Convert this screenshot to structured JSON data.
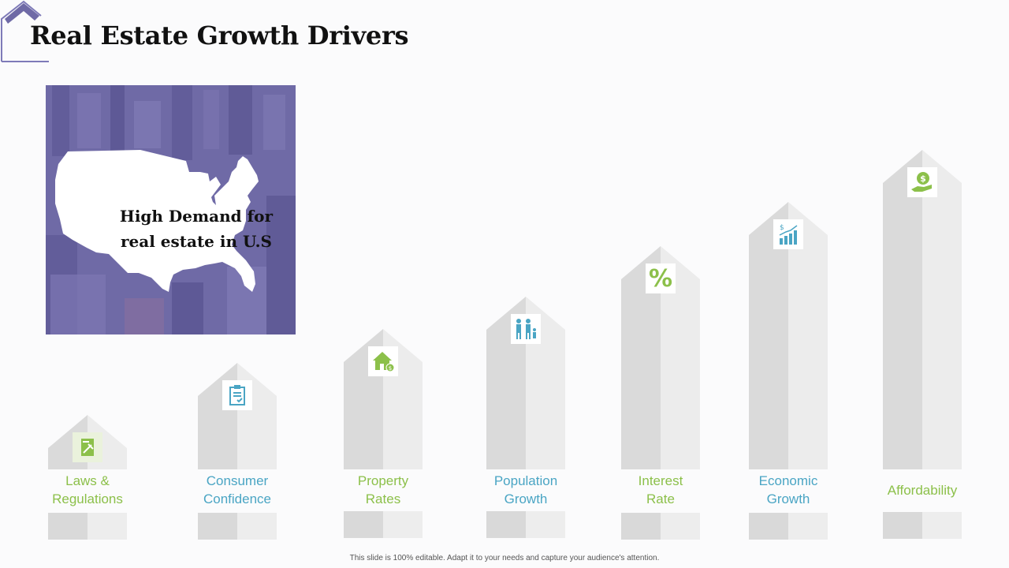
{
  "title": "Real Estate Growth Drivers",
  "hero": {
    "line1": "High Demand for",
    "line2": "real estate in U.S"
  },
  "drivers": [
    {
      "label_line1": "Laws &",
      "label_line2": "Regulations",
      "icon": "law-document-icon"
    },
    {
      "label_line1": "Consumer",
      "label_line2": "Confidence",
      "icon": "clipboard-check-icon"
    },
    {
      "label_line1": "Property",
      "label_line2": "Rates",
      "icon": "house-dollar-icon"
    },
    {
      "label_line1": "Population",
      "label_line2": "Growth",
      "icon": "family-icon"
    },
    {
      "label_line1": "Interest",
      "label_line2": "Rate",
      "icon": "percent-icon",
      "icon_text": "%"
    },
    {
      "label_line1": "Economic",
      "label_line2": "Growth",
      "icon": "growth-chart-icon"
    },
    {
      "label_line1": "Affordability",
      "label_line2": "",
      "icon": "hand-coin-icon"
    }
  ],
  "footer": "This slide is 100% editable. Adapt it to your needs and capture your audience's attention.",
  "colors": {
    "accent_purple": "#6f6aa6",
    "label_blue": "#4aa5c4",
    "label_green": "#8cc04a"
  }
}
